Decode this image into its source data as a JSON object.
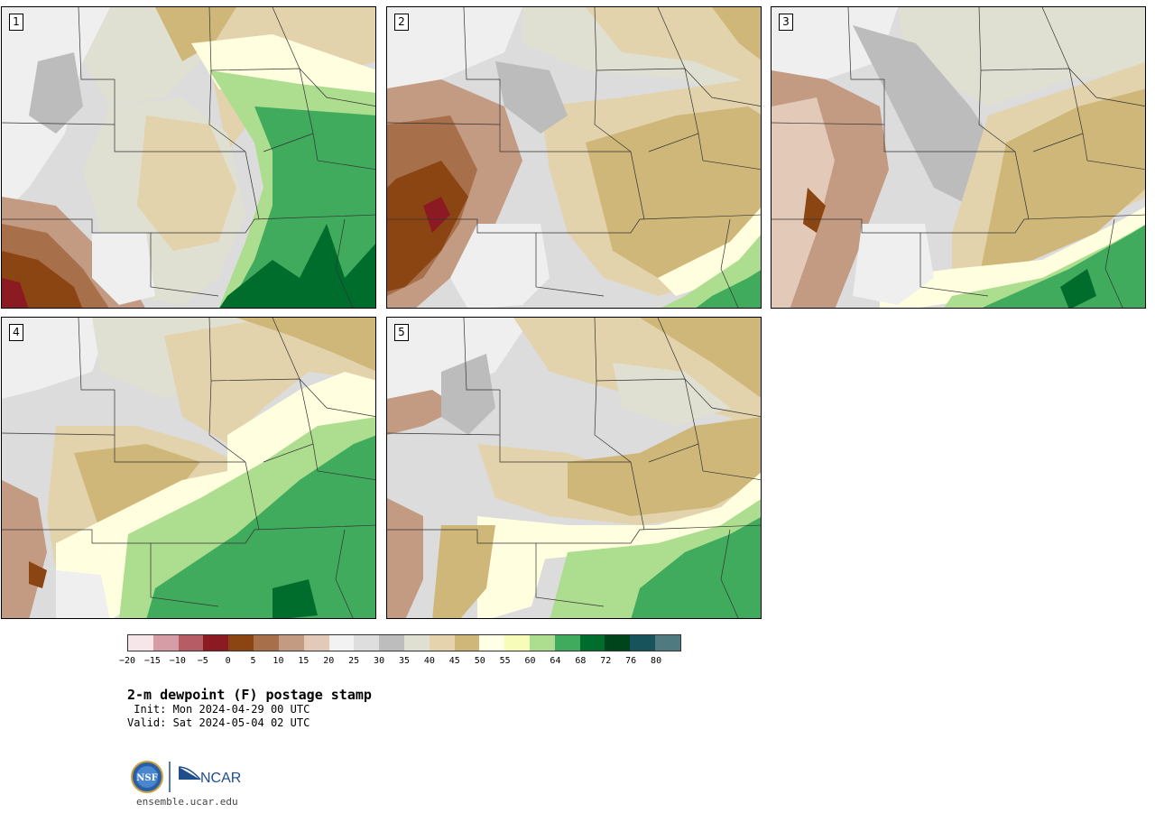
{
  "title": "2-m dewpoint (F) postage stamp",
  "init_text": " Init: Mon 2024-04-29 00 UTC",
  "valid_text": "Valid: Sat 2024-05-04 02 UTC",
  "website": "ensemble.ucar.edu",
  "logo": {
    "nsf_text": "NSF",
    "ncar_text": "NCAR",
    "colors": {
      "nsf_blue": "#2a5fa8",
      "ncar_blue": "#1f4e8c"
    }
  },
  "members": [
    {
      "label": "1"
    },
    {
      "label": "2"
    },
    {
      "label": "3"
    },
    {
      "label": "4"
    },
    {
      "label": "5"
    }
  ],
  "colorbar": {
    "colors": [
      "#f6e6ea",
      "#d69da6",
      "#b55c65",
      "#8b1a22",
      "#8b4513",
      "#a8704a",
      "#c39a82",
      "#e3c9b8",
      "#f2f2f2",
      "#dedede",
      "#bdbdbd",
      "#dfdfd2",
      "#e4d3ac",
      "#cfb77a",
      "#ffffe6",
      "#f7fcb8",
      "#addd8e",
      "#41ab5d",
      "#006d2c",
      "#00441b",
      "#17535a",
      "#4f7a80"
    ],
    "tick_labels": [
      "−20",
      "−15",
      "−10",
      "−5",
      "0",
      "5",
      "10",
      "15",
      "20",
      "25",
      "30",
      "35",
      "40",
      "45",
      "50",
      "55",
      "60",
      "64",
      "68",
      "72",
      "76",
      "80"
    ]
  },
  "map_colors": {
    "gray_light": "#efefef",
    "gray_mid": "#dcdcdc",
    "gray_dark": "#bcbcbc",
    "tan_light": "#e3d3ac",
    "tan": "#cfb77a",
    "cream": "#ffffe0",
    "pale_yellow": "#f5fbbd",
    "green_light": "#addd8e",
    "green": "#41ab5d",
    "green_dark": "#006d2c",
    "brown_light": "#c39a82",
    "brown": "#a8704a",
    "brown_dark": "#8b4513",
    "red_dark": "#8b1a22",
    "pinkish": "#e3c9b8",
    "border_line": "#333333"
  }
}
